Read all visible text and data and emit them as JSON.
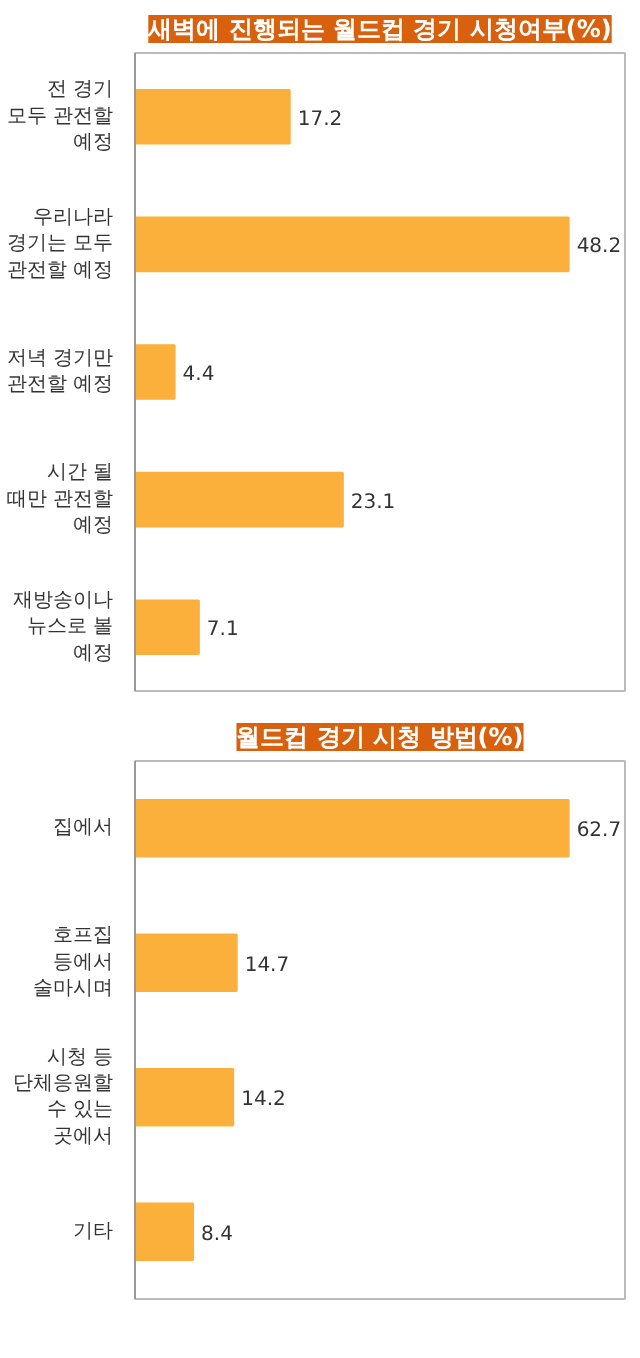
{
  "chart_data": [
    {
      "type": "bar",
      "orientation": "horizontal",
      "title": "새벽에 진행되는 월드컵 경기 시청여부(%)",
      "categories": [
        "전 경기 모두 관전할 예정",
        "우리나라 경기는 모두 관전할 예정",
        "저녁 경기만 관전할 예정",
        "시간 될 때만 관전할 예정",
        "재방송이나 뉴스로 볼 예정"
      ],
      "values": [
        17.2,
        48.2,
        4.4,
        23.1,
        7.1
      ],
      "color": "#fbb03b",
      "data_labels": true,
      "tick_labels": "y",
      "grid": false
    },
    {
      "type": "bar",
      "orientation": "horizontal",
      "title": "월드컵 경기 시청 방법(%)",
      "categories": [
        "집에서",
        "호프집 등에서 술마시며",
        "시청 등 단체응원할 수 있는 곳에서",
        "기타"
      ],
      "values": [
        62.7,
        14.7,
        14.2,
        8.4
      ],
      "color": "#fbb03b",
      "data_labels": true,
      "tick_labels": "y",
      "grid": false
    }
  ]
}
